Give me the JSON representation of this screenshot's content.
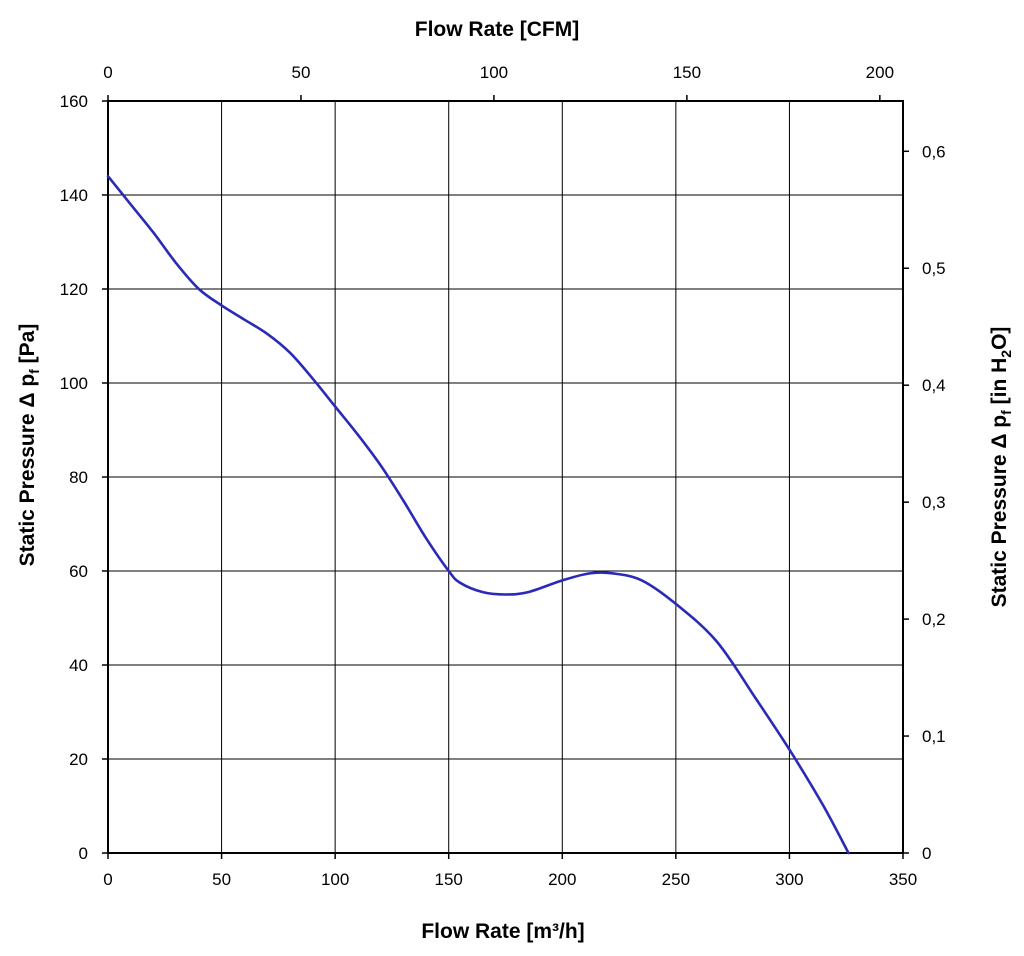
{
  "chart_data": {
    "type": "line",
    "xlabel_bottom": "Flow Rate [m³/h]",
    "xlabel_top": "Flow Rate [CFM]",
    "ylabel_left": {
      "main": "Static Pressure Δ p",
      "sub": "f",
      "unit": " [Pa]"
    },
    "ylabel_right": {
      "main": "Static Pressure Δ p",
      "sub": "f",
      "unit_pre": " [in H",
      "unit_sub": "2",
      "unit_post": "O]"
    },
    "xlim_bottom": [
      0,
      350
    ],
    "xticks_bottom": [
      "0",
      "50",
      "100",
      "150",
      "200",
      "250",
      "300",
      "350"
    ],
    "xlim_top": [
      0,
      206
    ],
    "xticks_top": [
      {
        "value": 0,
        "label": "0"
      },
      {
        "value": 50,
        "label": "50"
      },
      {
        "value": 100,
        "label": "100"
      },
      {
        "value": 150,
        "label": "150"
      },
      {
        "value": 200,
        "label": "200"
      }
    ],
    "ylim_left": [
      0,
      160
    ],
    "yticks_left": [
      "0",
      "20",
      "40",
      "60",
      "80",
      "100",
      "120",
      "140",
      "160"
    ],
    "ylim_right": [
      0,
      0.643
    ],
    "yticks_right": [
      {
        "value": 0,
        "label": "0"
      },
      {
        "value": 0.1,
        "label": "0,1"
      },
      {
        "value": 0.2,
        "label": "0,2"
      },
      {
        "value": 0.3,
        "label": "0,3"
      },
      {
        "value": 0.4,
        "label": "0,4"
      },
      {
        "value": 0.5,
        "label": "0,5"
      },
      {
        "value": 0.6,
        "label": "0,6"
      }
    ],
    "grid": true,
    "line_color": "#2a2ab8",
    "series": [
      {
        "x": [
          0,
          10,
          20,
          30,
          40,
          50,
          60,
          70,
          80,
          90,
          100,
          110,
          120,
          130,
          140,
          150,
          155,
          165,
          175,
          185,
          200,
          212,
          222,
          235,
          250,
          268,
          285,
          300,
          315,
          326
        ],
        "y": [
          144,
          138,
          132,
          125.5,
          120,
          116.5,
          113.5,
          110.5,
          106.5,
          101,
          95,
          89,
          82.5,
          75,
          67,
          60,
          57.5,
          55.5,
          55,
          55.5,
          58,
          59.5,
          59.5,
          58,
          53,
          45,
          33,
          22,
          10,
          0
        ]
      }
    ]
  }
}
